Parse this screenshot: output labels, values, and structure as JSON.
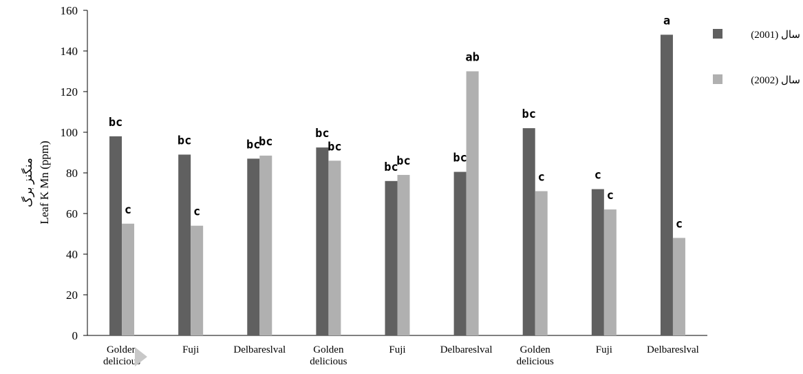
{
  "chart_data": {
    "type": "bar",
    "ylabel_fa": "منگنز برگ",
    "ylabel": "Leaf K Mn (ppm)",
    "xlabel": "",
    "ylim": [
      0,
      160
    ],
    "yticks": [
      0,
      20,
      40,
      60,
      80,
      100,
      120,
      140,
      160
    ],
    "grid": false,
    "legend_position": "top-right",
    "categories": [
      [
        "Golden",
        "delicious"
      ],
      [
        "Fuji"
      ],
      [
        "Delbareslval"
      ],
      [
        "Golden",
        "delicious"
      ],
      [
        "Fuji"
      ],
      [
        "Delbareslval"
      ],
      [
        "Golden",
        "delicious"
      ],
      [
        "Fuji"
      ],
      [
        "Delbareslval"
      ]
    ],
    "series": [
      {
        "name": "سال (2001)",
        "color": "#606060",
        "values": [
          98,
          89,
          87,
          92.5,
          76,
          80.5,
          102,
          72,
          148
        ],
        "labels": [
          "bc",
          "bc",
          "bc",
          "bc",
          "bc",
          "bc",
          "bc",
          "c",
          "a"
        ]
      },
      {
        "name": "سال (2002)",
        "color": "#b0b0b0",
        "values": [
          55,
          54,
          88.5,
          86,
          79,
          130,
          71,
          62,
          48
        ],
        "labels": [
          "c",
          "c",
          "bc",
          "bc",
          "bc",
          "ab",
          "c",
          "c",
          "c"
        ]
      }
    ]
  }
}
